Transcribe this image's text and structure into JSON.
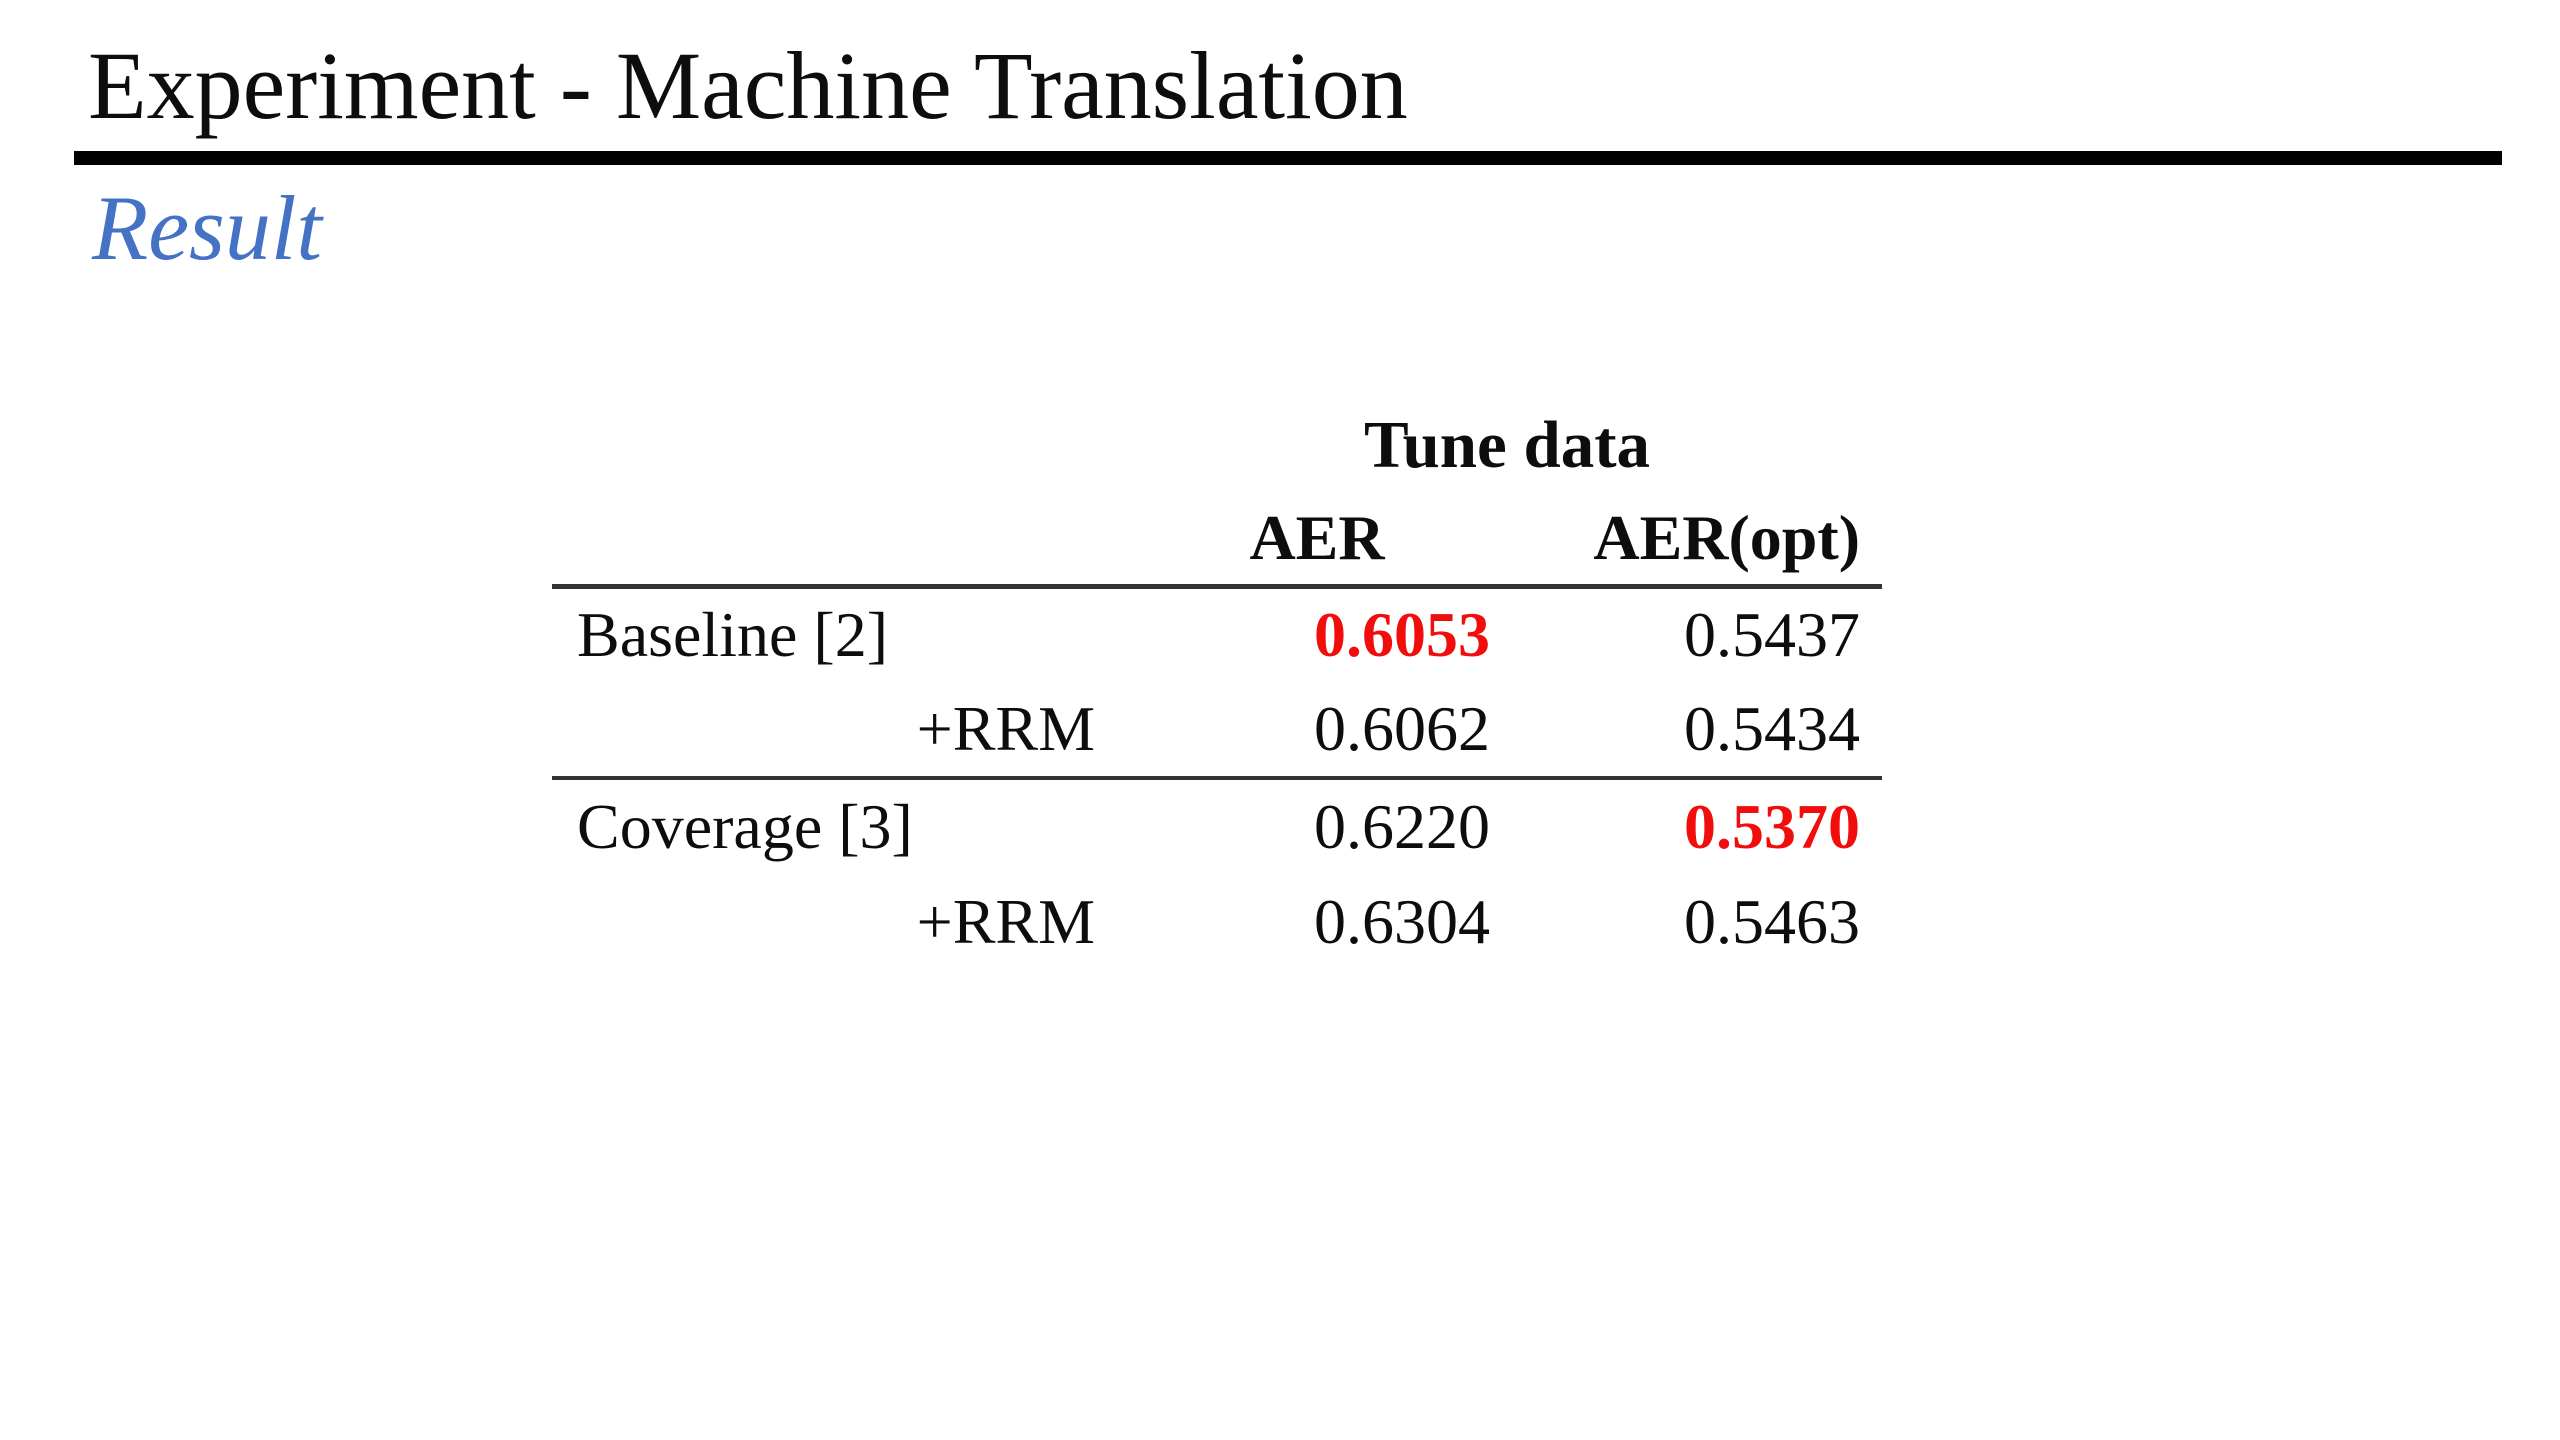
{
  "slide": {
    "title": "Experiment - Machine Translation",
    "subtitle": "Result"
  },
  "table": {
    "group_header": "Tune data",
    "columns": [
      "AER",
      "AER(opt)"
    ],
    "rows": [
      {
        "label": "Baseline [2]",
        "indented": false,
        "aer": "0.6053",
        "aer_highlighted": true,
        "aer_opt": "0.5437",
        "aer_opt_highlighted": false
      },
      {
        "label": "+RRM",
        "indented": true,
        "aer": "0.6062",
        "aer_highlighted": false,
        "aer_opt": "0.5434",
        "aer_opt_highlighted": false
      },
      {
        "label": "Coverage [3]",
        "indented": false,
        "aer": "0.6220",
        "aer_highlighted": false,
        "aer_opt": "0.5370",
        "aer_opt_highlighted": true
      },
      {
        "label": "+RRM",
        "indented": true,
        "aer": "0.6304",
        "aer_highlighted": false,
        "aer_opt": "0.5463",
        "aer_opt_highlighted": false
      }
    ]
  },
  "colors": {
    "accent_blue": "#4472c4",
    "highlight_red": "#f20d0d",
    "rule_dark": "#000000",
    "table_rule": "#333333",
    "text": "#0d0d0d"
  }
}
